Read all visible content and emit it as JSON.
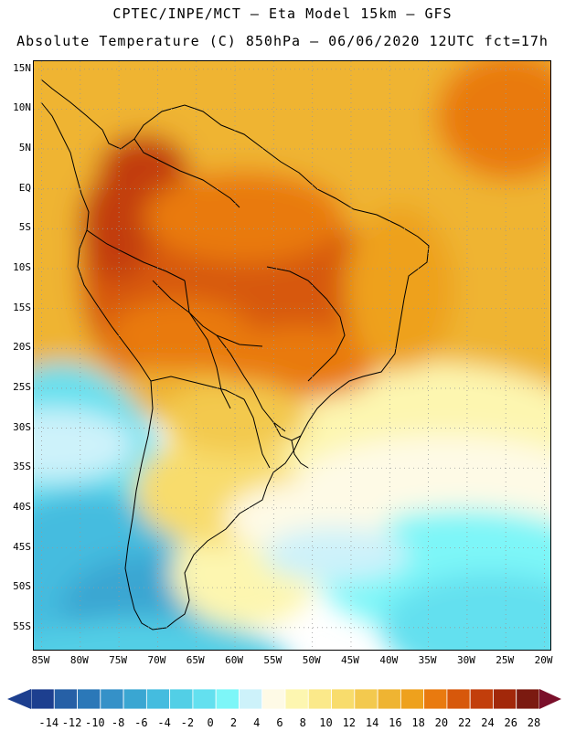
{
  "header": {
    "line1": "CPTEC/INPE/MCT –  Eta Model 15km – GFS",
    "line2": "Absolute Temperature (C) 850hPa – 06/06/2020 12UTC fct=17h"
  },
  "map": {
    "region": "South America and South Atlantic",
    "variable": "Absolute Temperature (C) 850hPa",
    "lon_range": [
      -86,
      -19
    ],
    "lat_range": [
      -58,
      16
    ],
    "lat_ticks": [
      "15N",
      "10N",
      "5N",
      "EQ",
      "5S",
      "10S",
      "15S",
      "20S",
      "25S",
      "30S",
      "35S",
      "40S",
      "45S",
      "50S",
      "55S"
    ],
    "lat_values": [
      15,
      10,
      5,
      0,
      -5,
      -10,
      -15,
      -20,
      -25,
      -30,
      -35,
      -40,
      -45,
      -50,
      -55
    ],
    "lon_ticks": [
      "85W",
      "80W",
      "75W",
      "70W",
      "65W",
      "60W",
      "55W",
      "50W",
      "45W",
      "40W",
      "35W",
      "30W",
      "25W",
      "20W"
    ],
    "lon_values": [
      -85,
      -80,
      -75,
      -70,
      -65,
      -60,
      -55,
      -50,
      -45,
      -40,
      -35,
      -30,
      -25,
      -20
    ],
    "gridlines": "dotted"
  },
  "colorbar": {
    "labels": [
      "-14",
      "-12",
      "-10",
      "-8",
      "-6",
      "-4",
      "-2",
      "0",
      "2",
      "4",
      "6",
      "8",
      "10",
      "12",
      "14",
      "16",
      "18",
      "20",
      "22",
      "24",
      "26",
      "28"
    ],
    "colors": [
      "#1d3f8f",
      "#2660a6",
      "#2b78b8",
      "#3591c8",
      "#3aa6d2",
      "#44bcdf",
      "#52cfe6",
      "#63e0ef",
      "#7df6f8",
      "#cdf2fa",
      "#fefae6",
      "#fdf6b0",
      "#fbe98a",
      "#f8dc6c",
      "#f3c94e",
      "#efb432",
      "#eea11d",
      "#e97a0f",
      "#d7580b",
      "#c23e0b",
      "#a2280a",
      "#7b1a10"
    ]
  }
}
